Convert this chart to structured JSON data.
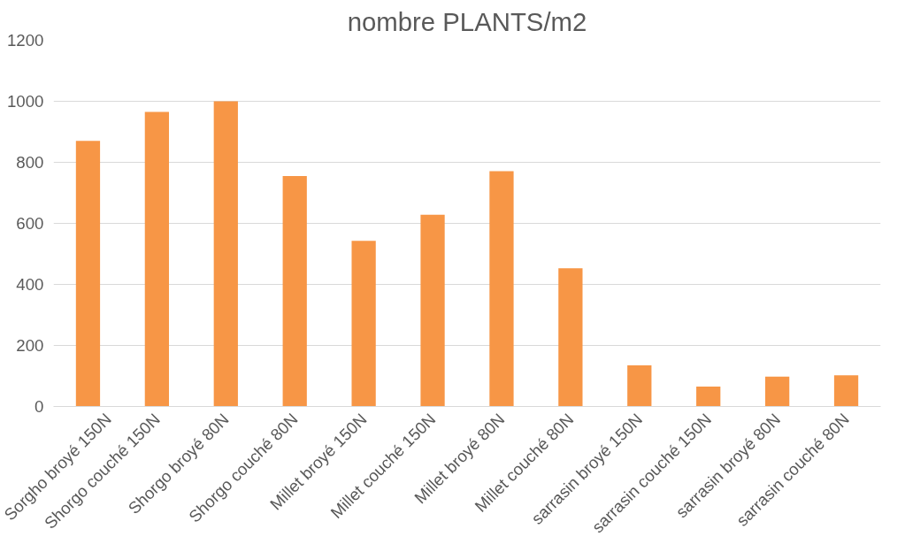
{
  "chart_data": {
    "type": "bar",
    "title": "nombre PLANTS/m2",
    "categories": [
      "Sorgho broyé 150N",
      "Shorgo couché 150N",
      "Shorgo broyé 80N",
      "Shorgo couché 80N",
      "Millet broyé 150N",
      "Millet couché 150N",
      "Millet broyé 80N",
      "Millet couché 80N",
      "sarrasin broyé 150N",
      "sarrasin couché 150N",
      "sarrasin broyé 80N",
      "sarrasin couché 80N"
    ],
    "values": [
      870,
      965,
      1000,
      755,
      543,
      628,
      771,
      453,
      135,
      65,
      98,
      102
    ],
    "color": "#f79646",
    "ylim": [
      0,
      1200
    ],
    "yticks": [
      0,
      200,
      400,
      600,
      800,
      1000,
      1200
    ],
    "grid": "y"
  }
}
